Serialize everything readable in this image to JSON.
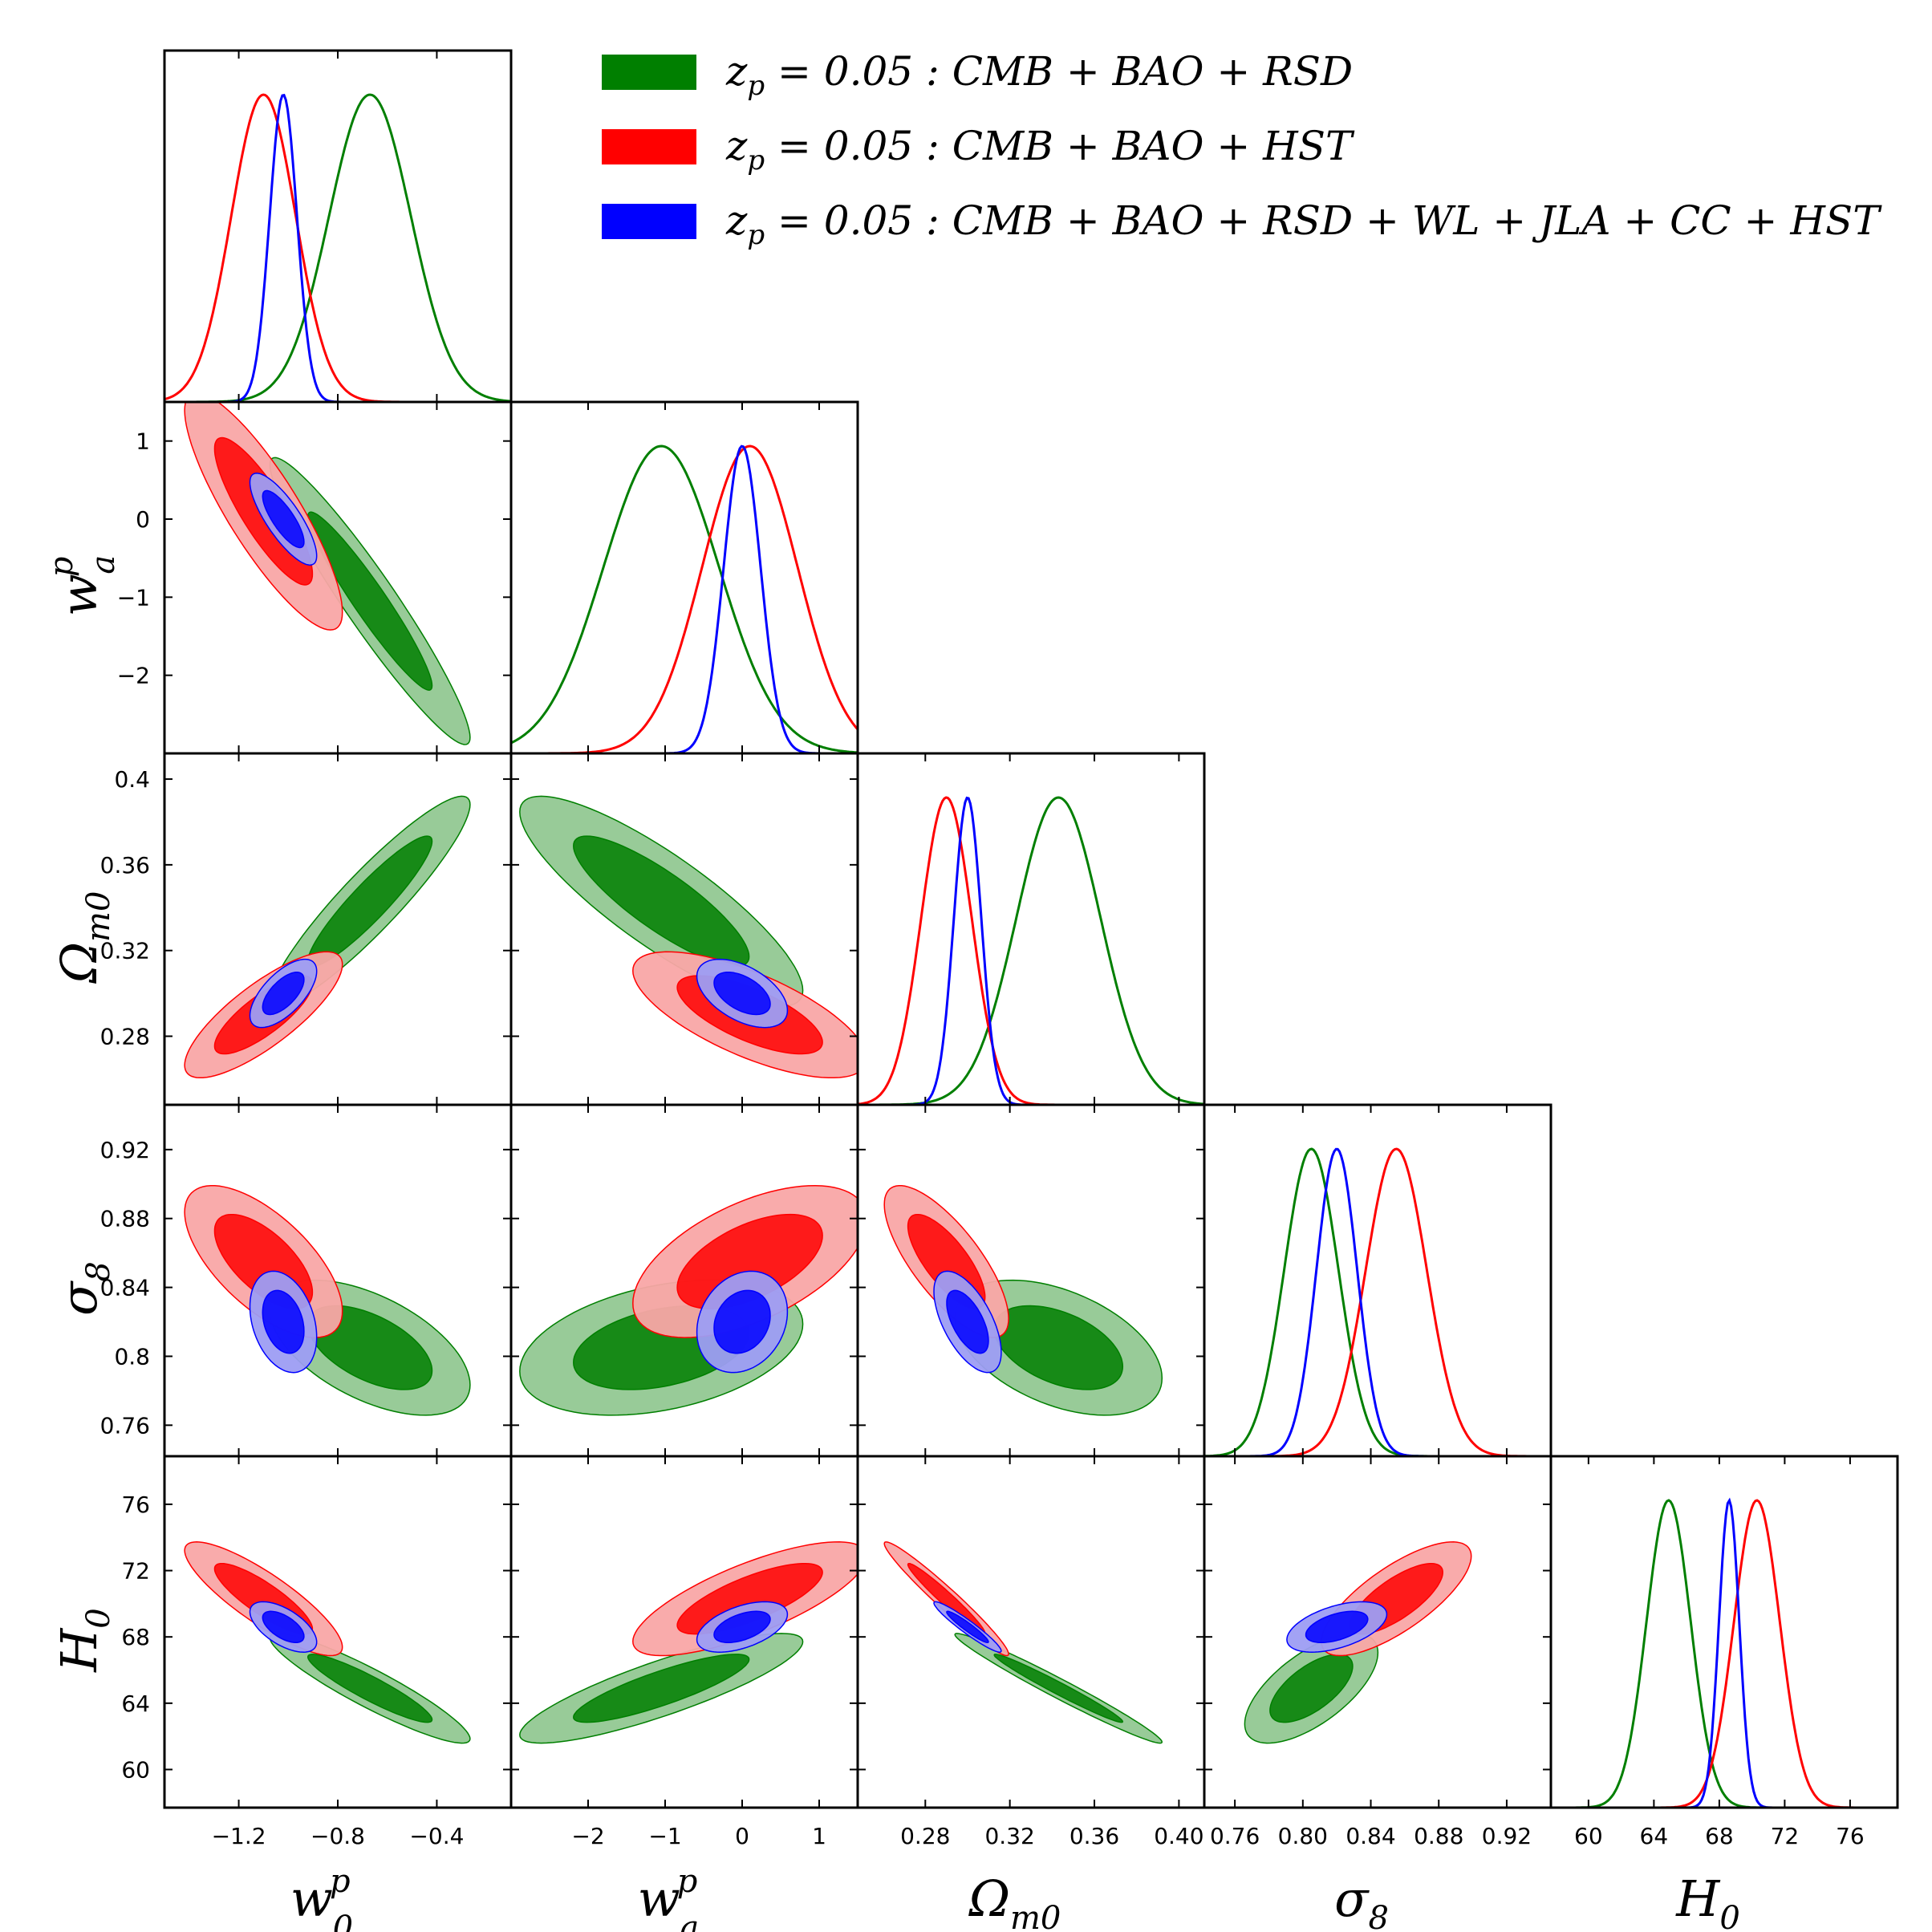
{
  "chart_data": {
    "type": "triangle-corner",
    "params": [
      "w0",
      "wa",
      "Om",
      "s8",
      "H0"
    ],
    "param_labels": {
      "w0": {
        "main": "w",
        "sub": "0",
        "sup": "p"
      },
      "wa": {
        "main": "w",
        "sub": "a",
        "sup": "p"
      },
      "Om": {
        "main": "Ω",
        "sub": "m0",
        "sup": ""
      },
      "s8": {
        "main": "σ",
        "sub": "8",
        "sup": ""
      },
      "H0": {
        "main": "H",
        "sub": "0",
        "sup": ""
      }
    },
    "ranges": {
      "w0": [
        -1.5,
        -0.1
      ],
      "wa": [
        -3.0,
        1.5
      ],
      "Om": [
        0.248,
        0.412
      ],
      "s8": [
        0.742,
        0.946
      ],
      "H0": [
        57.7,
        78.9
      ]
    },
    "ticks": {
      "w0": {
        "values": [
          -1.2,
          -0.8,
          -0.4
        ],
        "labels": [
          "−1.2",
          "−0.8",
          "−0.4"
        ]
      },
      "wa": {
        "values": [
          -2,
          -1,
          0,
          1
        ],
        "labels": [
          "−2",
          "−1",
          "0",
          "1"
        ]
      },
      "Om": {
        "values": [
          0.28,
          0.32,
          0.36,
          0.4
        ],
        "labels": [
          "0.28",
          "0.32",
          "0.36",
          "0.40"
        ]
      },
      "s8": {
        "values": [
          0.76,
          0.8,
          0.84,
          0.88,
          0.92
        ],
        "labels": [
          "0.76",
          "0.80",
          "0.84",
          "0.88",
          "0.92"
        ]
      },
      "H0": {
        "values": [
          60,
          64,
          68,
          72,
          76
        ],
        "labels": [
          "60",
          "64",
          "68",
          "72",
          "76"
        ]
      }
    },
    "row_tick_labels": {
      "wa": [
        "1",
        "0",
        "−1",
        "−2"
      ],
      "Om": [
        "0.4",
        "0.36",
        "0.32",
        "0.28"
      ],
      "s8": [
        "0.92",
        "0.88",
        "0.84",
        "0.8",
        "0.76"
      ],
      "H0": [
        "76",
        "72",
        "68",
        "64",
        "60"
      ]
    },
    "row_tick_values": {
      "wa": [
        1,
        0,
        -1,
        -2
      ],
      "Om": [
        0.4,
        0.36,
        0.32,
        0.28
      ],
      "s8": [
        0.92,
        0.88,
        0.84,
        0.8,
        0.76
      ],
      "H0": [
        76,
        72,
        68,
        64,
        60
      ]
    },
    "series": [
      {
        "name": "z_p = 0.05: CMB + BAO + RSD",
        "legend_prefix": "z",
        "legend_sub": "p",
        "legend_rest": " = 0.05 :  CMB + BAO + RSD",
        "color": "#007f00",
        "light": "#92c892",
        "mean": {
          "w0": -0.67,
          "wa": -1.05,
          "Om": 0.343,
          "s8": 0.805,
          "H0": 64.9
        },
        "sd": {
          "w0": 0.165,
          "wa": 0.75,
          "Om": 0.02,
          "s8": 0.016,
          "H0": 1.35
        },
        "corr": {
          "w0|wa": -0.95,
          "w0|Om": 0.92,
          "w0|s8": -0.55,
          "w0|H0": -0.92,
          "wa|Om": -0.85,
          "wa|s8": 0.35,
          "wa|H0": 0.85,
          "Om|s8": -0.45,
          "Om|H0": -0.98,
          "s8|H0": 0.65
        }
      },
      {
        "name": "z_p = 0.05: CMB + BAO + HST",
        "legend_prefix": "z",
        "legend_sub": "p",
        "legend_rest": " = 0.05 :  CMB + BAO + HST",
        "color": "#ff0000",
        "light": "#f9a6a6",
        "mean": {
          "w0": -1.1,
          "wa": 0.1,
          "Om": 0.29,
          "s8": 0.855,
          "H0": 70.3
        },
        "sd": {
          "w0": 0.13,
          "wa": 0.62,
          "Om": 0.012,
          "s8": 0.018,
          "H0": 1.4
        },
        "corr": {
          "w0|wa": -0.85,
          "w0|Om": 0.8,
          "w0|s8": -0.65,
          "w0|H0": -0.85,
          "wa|Om": -0.7,
          "wa|s8": 0.55,
          "wa|H0": 0.75,
          "Om|s8": -0.75,
          "Om|H0": -0.97,
          "s8|H0": 0.75
        }
      },
      {
        "name": "z_p = 0.05: CMB + BAO + RSD + WL + JLA + CC + HST",
        "legend_prefix": "z",
        "legend_sub": "p",
        "legend_rest": " = 0.05 :  CMB + BAO + RSD + WL + JLA + CC + HST",
        "color": "#0000ff",
        "light": "#9d9df3",
        "mean": {
          "w0": -1.02,
          "wa": 0.0,
          "Om": 0.3,
          "s8": 0.82,
          "H0": 68.6
        },
        "sd": {
          "w0": 0.055,
          "wa": 0.24,
          "Om": 0.0065,
          "s8": 0.012,
          "H0": 0.62
        },
        "corr": {
          "w0|wa": -0.8,
          "w0|Om": 0.65,
          "w0|s8": -0.3,
          "w0|H0": -0.6,
          "wa|Om": -0.5,
          "wa|s8": 0.2,
          "wa|H0": 0.5,
          "Om|s8": -0.6,
          "Om|H0": -0.95,
          "s8|H0": 0.5
        }
      }
    ],
    "contour_levels": [
      "68%",
      "95%"
    ],
    "legend_position": "top-right"
  }
}
